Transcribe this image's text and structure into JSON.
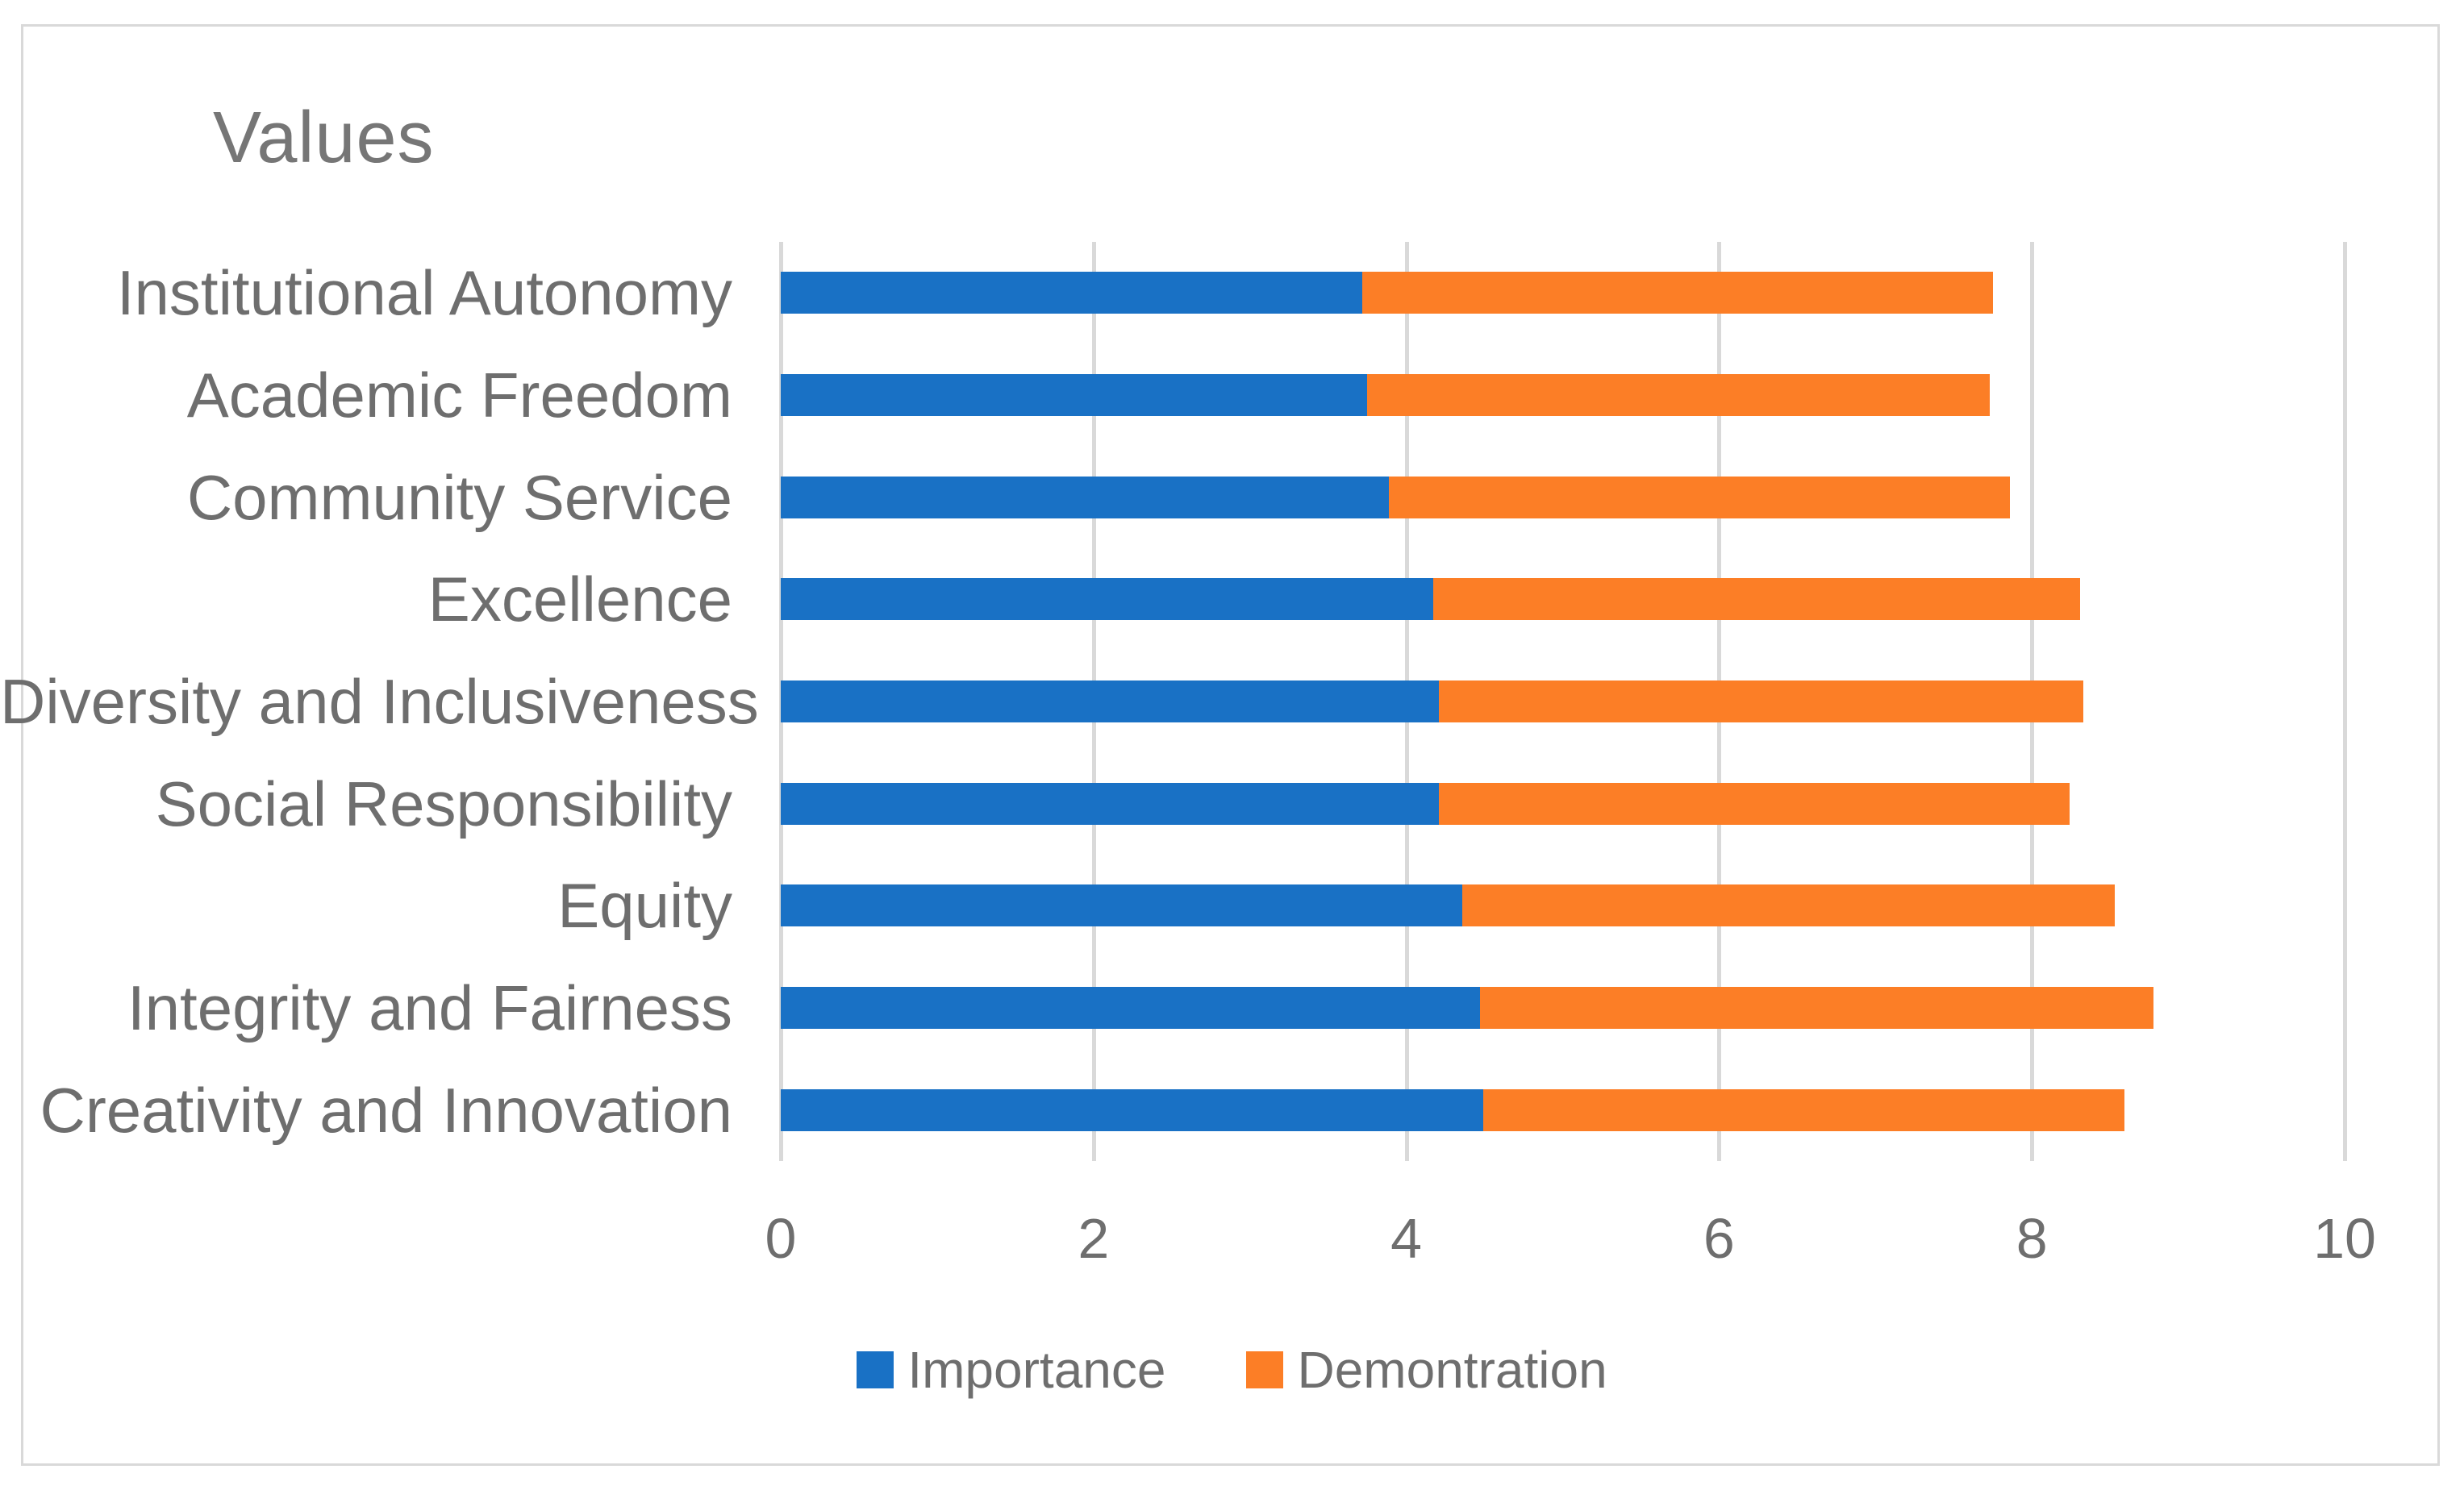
{
  "chart_data": {
    "type": "bar",
    "orientation": "horizontal",
    "stacked": true,
    "title": "Values",
    "categories": [
      "Institutional Autonomy",
      "Academic Freedom",
      "Community Service",
      "Excellence",
      "Diversity and Inclusiveness",
      "Social Responsibility",
      "Equity",
      "Integrity and Fairness",
      "Creativity and Innovation"
    ],
    "series": [
      {
        "name": "Importance",
        "color": "#1971C5",
        "values": [
          3.72,
          3.75,
          3.89,
          4.17,
          4.21,
          4.21,
          4.36,
          4.47,
          4.49
        ]
      },
      {
        "name": "Demontration",
        "color": "#FC7E26",
        "values": [
          4.03,
          3.98,
          3.97,
          4.14,
          4.12,
          4.03,
          4.17,
          4.31,
          4.1
        ]
      }
    ],
    "stacked_totals": [
      7.75,
      7.73,
      7.86,
      8.31,
      8.33,
      8.24,
      8.53,
      8.78,
      8.59
    ],
    "xlabel": "",
    "ylabel": "",
    "xlim": [
      0,
      10
    ],
    "xticks": [
      "0",
      "2",
      "4",
      "6",
      "8",
      "10"
    ],
    "grid": true,
    "legend_position": "bottom",
    "gridline_color": "#D9D9D9",
    "border_color": "#D9D9D9",
    "title_color": "#767676",
    "label_color": "#6E6E6E"
  }
}
